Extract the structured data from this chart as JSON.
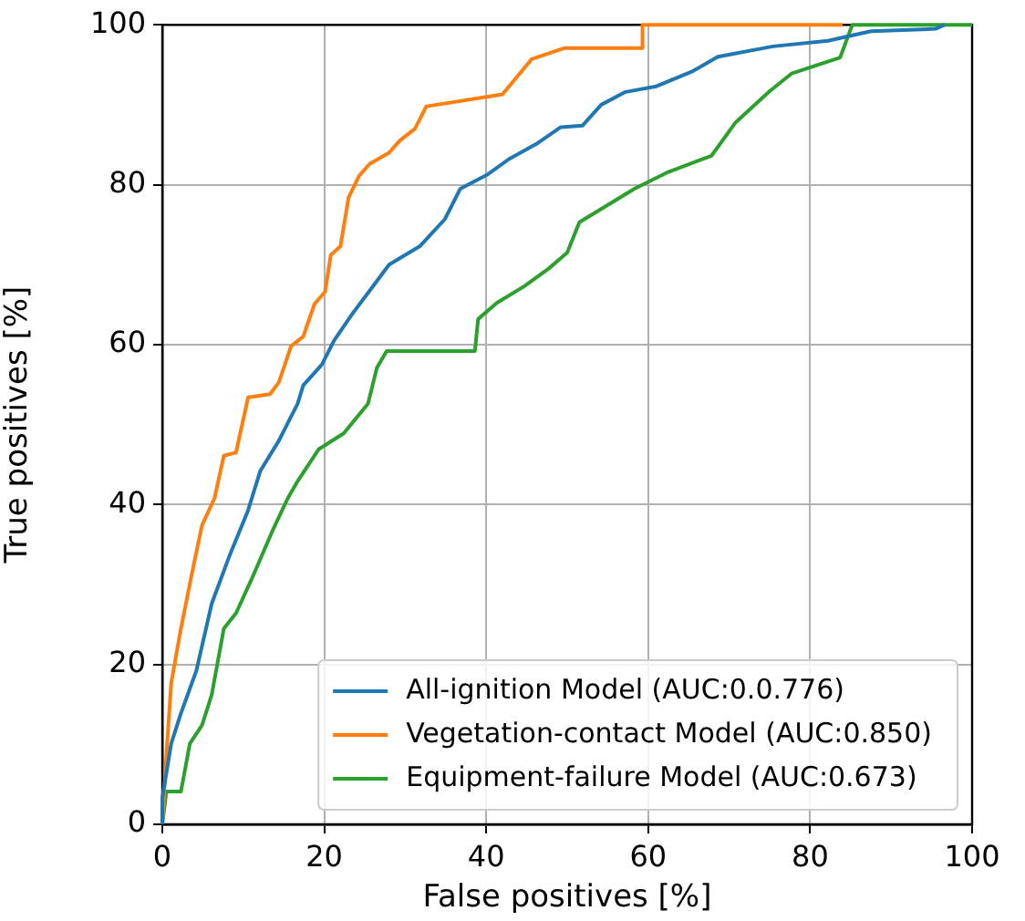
{
  "chart_data": {
    "type": "line",
    "xlabel": "False positives [%]",
    "ylabel": "True positives [%]",
    "xlim": [
      0,
      100
    ],
    "ylim": [
      0,
      100
    ],
    "xticks": [
      0,
      20,
      40,
      60,
      80,
      100
    ],
    "yticks": [
      0,
      20,
      40,
      60,
      80,
      100
    ],
    "grid": true,
    "legend": "bottom right",
    "marker": "none",
    "line_style": "solid",
    "series": [
      {
        "name": "All-ignition Model (AUC:0.0.776)",
        "color": "#1f77b4",
        "x": [
          0,
          0,
          1.1,
          2.3,
          4.2,
          6.1,
          8.3,
          10.6,
          12.1,
          14.4,
          16.7,
          17.4,
          19.7,
          21.2,
          23.5,
          25.8,
          28,
          31.8,
          34.9,
          36.8,
          40.2,
          42.8,
          46.2,
          49.2,
          51.9,
          54.2,
          57.2,
          61,
          65.5,
          68.6,
          75.4,
          82.2,
          87.5,
          95.5,
          96.6
        ],
        "values": [
          0,
          3.3,
          10.1,
          13.9,
          19.2,
          27.6,
          33.6,
          39.3,
          44.2,
          48,
          52.6,
          54.9,
          57.5,
          60.5,
          63.9,
          67,
          70,
          72.3,
          75.7,
          79.5,
          81.3,
          83.2,
          85.1,
          87.2,
          87.4,
          90,
          91.6,
          92.3,
          94.2,
          96,
          97.3,
          98,
          99.2,
          99.5,
          100
        ]
      },
      {
        "name": "Vegetation-contact Model (AUC:0.850)",
        "color": "#ff7f0e",
        "x": [
          0,
          0.4,
          1.1,
          2.3,
          3.8,
          4.9,
          6.45,
          7.6,
          9.1,
          10.6,
          13.3,
          14.4,
          15.9,
          17.4,
          18.8,
          20.1,
          20.8,
          22,
          23,
          24.3,
          25.6,
          28,
          29.3,
          31.2,
          32.6,
          42,
          45.6,
          49.7,
          59.3,
          59.3,
          84
        ],
        "values": [
          0,
          7.1,
          17.7,
          24.5,
          32.1,
          37.4,
          40.8,
          46.1,
          46.5,
          53.4,
          53.8,
          55.3,
          59.8,
          61,
          65.1,
          66.6,
          71.2,
          72.3,
          78.4,
          81.1,
          82.6,
          84,
          85.5,
          87,
          89.8,
          91.3,
          95.7,
          97.1,
          97.1,
          100,
          100
        ]
      },
      {
        "name": "Equipment-failure Model (AUC:0.673)",
        "color": "#2ca02c",
        "x": [
          0,
          0.5,
          2.3,
          3.4,
          4.9,
          6.1,
          7.6,
          9.1,
          11,
          13.6,
          15.5,
          16.7,
          19.3,
          22.4,
          25.4,
          26.5,
          27.7,
          38.6,
          39,
          41.3,
          44.7,
          47.7,
          50,
          51.5,
          58.3,
          62.5,
          67.8,
          70.8,
          75,
          77.7,
          83.7,
          85.2,
          100
        ],
        "values": [
          0,
          4.1,
          4.1,
          10.1,
          12.4,
          16.2,
          24.5,
          26.4,
          30.6,
          36.7,
          40.8,
          42.9,
          46.9,
          48.9,
          52.6,
          57.1,
          59.2,
          59.2,
          63.2,
          65.2,
          67.3,
          69.5,
          71.5,
          75.3,
          79.5,
          81.6,
          83.6,
          87.8,
          91.7,
          93.9,
          95.9,
          100,
          100
        ]
      }
    ]
  }
}
